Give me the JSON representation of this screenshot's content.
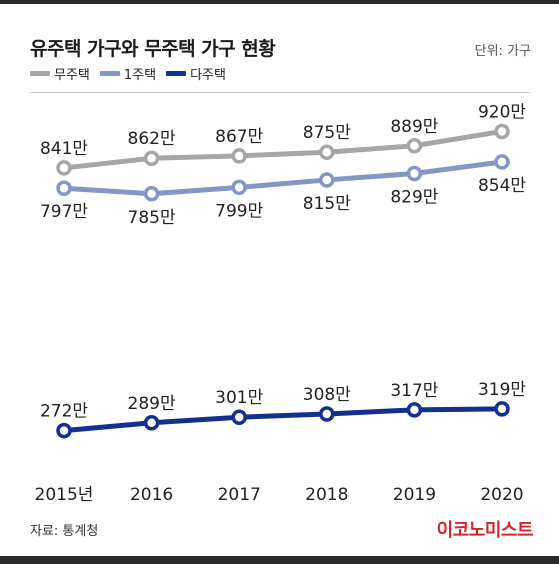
{
  "header": {
    "title": "유주택 가구와 무주택 가구 현황",
    "unit": "단위: 가구"
  },
  "footer": {
    "source": "자료: 통계청",
    "brand": "이코노미스트"
  },
  "colors": {
    "no_home": "#a6a6a6",
    "one_home": "#8496c4",
    "multi_home": "#12308e"
  },
  "chart_data": {
    "type": "line",
    "categories": [
      "2015년",
      "2016",
      "2017",
      "2018",
      "2019",
      "2020"
    ],
    "series": [
      {
        "name": "무주택",
        "values": [
          841,
          862,
          867,
          875,
          889,
          920
        ],
        "labels": [
          "841만",
          "862만",
          "867만",
          "875만",
          "889만",
          "920만"
        ],
        "label_side": "top",
        "color": "#a6a6a6"
      },
      {
        "name": "1주택",
        "values": [
          797,
          785,
          799,
          815,
          829,
          854
        ],
        "labels": [
          "797만",
          "785만",
          "799만",
          "815만",
          "829만",
          "854만"
        ],
        "label_side": "bottom",
        "color": "#8496c4"
      },
      {
        "name": "다주택",
        "values": [
          272,
          289,
          301,
          308,
          317,
          319
        ],
        "labels": [
          "272만",
          "289만",
          "301만",
          "308만",
          "317만",
          "319만"
        ],
        "label_side": "top",
        "color": "#12308e"
      }
    ],
    "ylim": [
      230,
      960
    ],
    "grid": false,
    "legend": "top-left"
  }
}
